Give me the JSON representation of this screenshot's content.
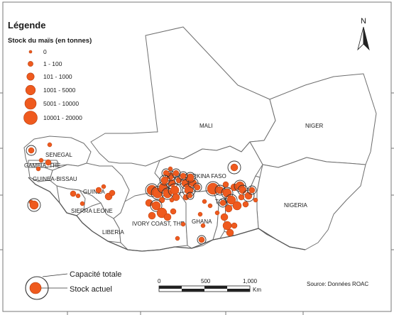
{
  "legend": {
    "title": "Légende",
    "subtitle": "Stock du maïs (en tonnes)",
    "classes": [
      "0",
      "1 - 100",
      "101 - 1000",
      "1001 - 5000",
      "5001 - 10000",
      "10001 - 20000"
    ],
    "capacity_label": "Capacité totale",
    "stock_label": "Stock actuel"
  },
  "north": {
    "label": "N"
  },
  "scale": {
    "ticks": [
      "0",
      "500",
      "1,000"
    ],
    "unit": "Km"
  },
  "source": "Source: Données ROAC",
  "countries": {
    "mali": "MALI",
    "niger": "NIGER",
    "nigeria": "NIGERIA",
    "senegal": "SENEGAL",
    "gambia": "GAMBIA, THE",
    "guinea_bissau": "GUINEA-BISSAU",
    "guinea": "GUINEA",
    "sierra_leone": "SIERRA LEONE",
    "liberia": "LIBERIA",
    "ivory_coast": "IVORY COAST, THE",
    "burkina": "BURKINA FASO",
    "ghana": "GHANA",
    "togo": "TOGO"
  },
  "colors": {
    "stock_fill": "#ef5a1e",
    "stock_stroke": "#b33c0c",
    "capacity_stroke": "#333333",
    "border": "#6e6e6e"
  }
}
